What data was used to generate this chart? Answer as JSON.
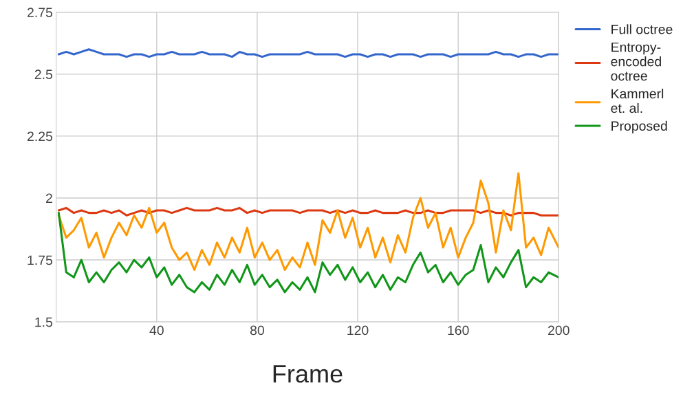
{
  "chart_data": {
    "type": "line",
    "xlabel": "Frame",
    "x": [
      1,
      4,
      7,
      10,
      13,
      16,
      19,
      22,
      25,
      28,
      31,
      34,
      37,
      40,
      43,
      46,
      49,
      52,
      55,
      58,
      61,
      64,
      67,
      70,
      73,
      76,
      79,
      82,
      85,
      88,
      91,
      94,
      97,
      100,
      103,
      106,
      109,
      112,
      115,
      118,
      121,
      124,
      127,
      130,
      133,
      136,
      139,
      142,
      145,
      148,
      151,
      154,
      157,
      160,
      163,
      166,
      169,
      172,
      175,
      178,
      181,
      184,
      187,
      190,
      193,
      196,
      200
    ],
    "series": [
      {
        "name": "Full octree",
        "color": "#3366cc",
        "values": [
          2.58,
          2.59,
          2.58,
          2.59,
          2.6,
          2.59,
          2.58,
          2.58,
          2.58,
          2.57,
          2.58,
          2.58,
          2.57,
          2.58,
          2.58,
          2.59,
          2.58,
          2.58,
          2.58,
          2.59,
          2.58,
          2.58,
          2.58,
          2.57,
          2.59,
          2.58,
          2.58,
          2.57,
          2.58,
          2.58,
          2.58,
          2.58,
          2.58,
          2.59,
          2.58,
          2.58,
          2.58,
          2.58,
          2.57,
          2.58,
          2.58,
          2.57,
          2.58,
          2.58,
          2.57,
          2.58,
          2.58,
          2.58,
          2.57,
          2.58,
          2.58,
          2.58,
          2.57,
          2.58,
          2.58,
          2.58,
          2.58,
          2.58,
          2.59,
          2.58,
          2.58,
          2.57,
          2.58,
          2.58,
          2.57,
          2.58,
          2.58
        ]
      },
      {
        "name": "Entropy-\nencoded\noctree",
        "color": "#dc3912",
        "values": [
          1.95,
          1.96,
          1.94,
          1.95,
          1.94,
          1.94,
          1.95,
          1.94,
          1.95,
          1.93,
          1.94,
          1.95,
          1.94,
          1.95,
          1.95,
          1.94,
          1.95,
          1.96,
          1.95,
          1.95,
          1.95,
          1.96,
          1.95,
          1.95,
          1.96,
          1.94,
          1.95,
          1.94,
          1.95,
          1.95,
          1.95,
          1.95,
          1.94,
          1.95,
          1.95,
          1.95,
          1.94,
          1.95,
          1.94,
          1.95,
          1.94,
          1.94,
          1.95,
          1.94,
          1.94,
          1.94,
          1.95,
          1.94,
          1.94,
          1.95,
          1.94,
          1.94,
          1.95,
          1.95,
          1.95,
          1.95,
          1.94,
          1.95,
          1.94,
          1.94,
          1.93,
          1.94,
          1.94,
          1.94,
          1.93,
          1.93,
          1.93
        ]
      },
      {
        "name": "Kammerl\net. al.",
        "color": "#ff9900",
        "values": [
          1.93,
          1.84,
          1.87,
          1.92,
          1.8,
          1.86,
          1.76,
          1.84,
          1.9,
          1.85,
          1.93,
          1.88,
          1.96,
          1.86,
          1.9,
          1.8,
          1.75,
          1.78,
          1.71,
          1.79,
          1.73,
          1.82,
          1.76,
          1.84,
          1.78,
          1.88,
          1.76,
          1.82,
          1.75,
          1.79,
          1.71,
          1.76,
          1.72,
          1.82,
          1.73,
          1.91,
          1.86,
          1.95,
          1.84,
          1.92,
          1.8,
          1.88,
          1.76,
          1.84,
          1.74,
          1.85,
          1.78,
          1.92,
          2.0,
          1.88,
          1.94,
          1.8,
          1.88,
          1.76,
          1.84,
          1.9,
          2.07,
          1.98,
          1.78,
          1.95,
          1.87,
          2.1,
          1.8,
          1.84,
          1.77,
          1.88,
          1.8
        ]
      },
      {
        "name": "Proposed",
        "color": "#109618",
        "values": [
          1.94,
          1.7,
          1.68,
          1.75,
          1.66,
          1.7,
          1.66,
          1.71,
          1.74,
          1.7,
          1.75,
          1.72,
          1.76,
          1.68,
          1.72,
          1.65,
          1.69,
          1.64,
          1.62,
          1.66,
          1.63,
          1.69,
          1.65,
          1.71,
          1.66,
          1.73,
          1.65,
          1.69,
          1.64,
          1.67,
          1.62,
          1.66,
          1.63,
          1.68,
          1.62,
          1.74,
          1.69,
          1.73,
          1.67,
          1.72,
          1.66,
          1.7,
          1.64,
          1.69,
          1.63,
          1.68,
          1.66,
          1.73,
          1.78,
          1.7,
          1.73,
          1.66,
          1.7,
          1.65,
          1.69,
          1.71,
          1.81,
          1.66,
          1.72,
          1.68,
          1.74,
          1.79,
          1.64,
          1.68,
          1.66,
          1.7,
          1.68
        ]
      }
    ],
    "xlim": [
      0,
      200
    ],
    "xticks": [
      40,
      80,
      120,
      160,
      200
    ],
    "ylim": [
      1.5,
      2.75
    ],
    "yticks": [
      1.5,
      1.75,
      2,
      2.25,
      2.5,
      2.75
    ],
    "grid": true,
    "legend": "top right",
    "marker": "none",
    "line_style": "solid"
  }
}
